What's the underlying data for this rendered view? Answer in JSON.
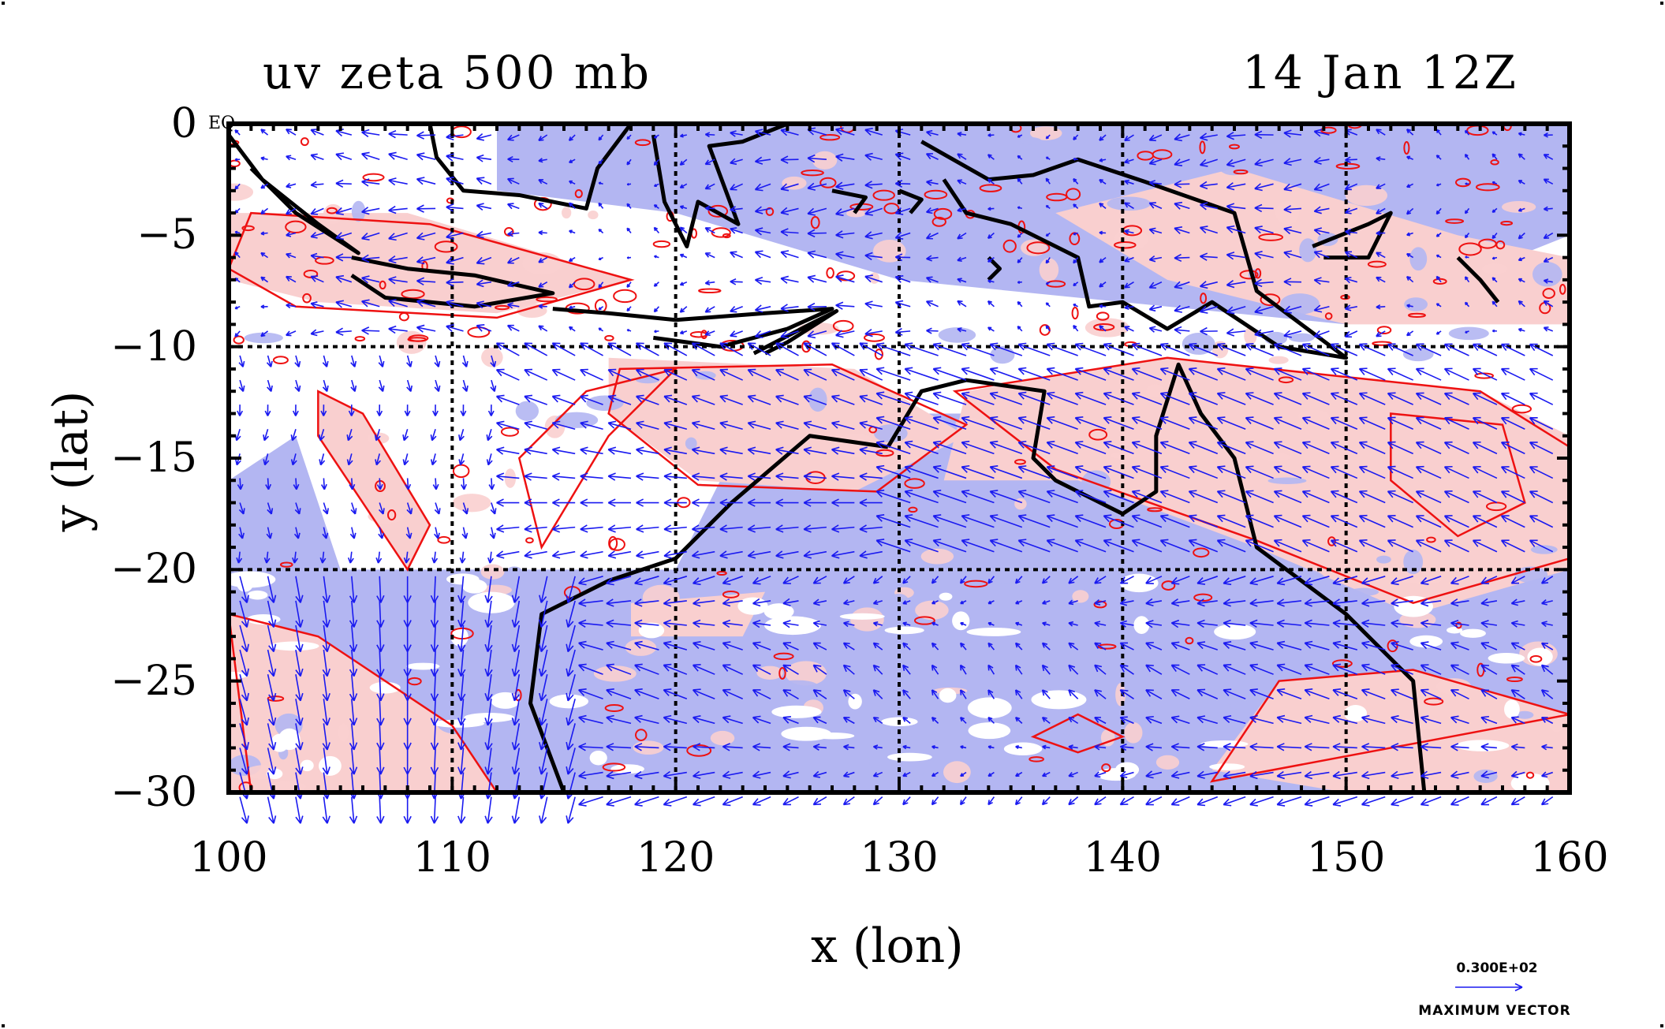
{
  "title_left": "uv zeta 500 mb",
  "title_right": "14 Jan 12Z",
  "x_axis_title": "x (lon)",
  "y_axis_title": "y (lat)",
  "x_ticks": [
    "100",
    "110",
    "120",
    "130",
    "140",
    "150",
    "160"
  ],
  "y_ticks": [
    "0",
    "−5",
    "−10",
    "−15",
    "−20",
    "−25",
    "−30"
  ],
  "equator_label": "EQ",
  "legend": {
    "value": "0.300E+02",
    "label": "MAXIMUM VECTOR"
  },
  "map": {
    "lon_range": [
      100,
      160
    ],
    "lat_range": [
      -30,
      0
    ],
    "dashed_gridlines_lon": [
      110,
      120,
      130,
      140,
      150
    ],
    "dashed_gridlines_lat": [
      -10,
      -20
    ],
    "colors": {
      "positive_vorticity_fill": "#f9cfcf",
      "negative_vorticity_fill": "#b3b6f2",
      "contour": "#ee1111",
      "vector": "#1a1af0",
      "coastline": "#000000"
    }
  }
}
